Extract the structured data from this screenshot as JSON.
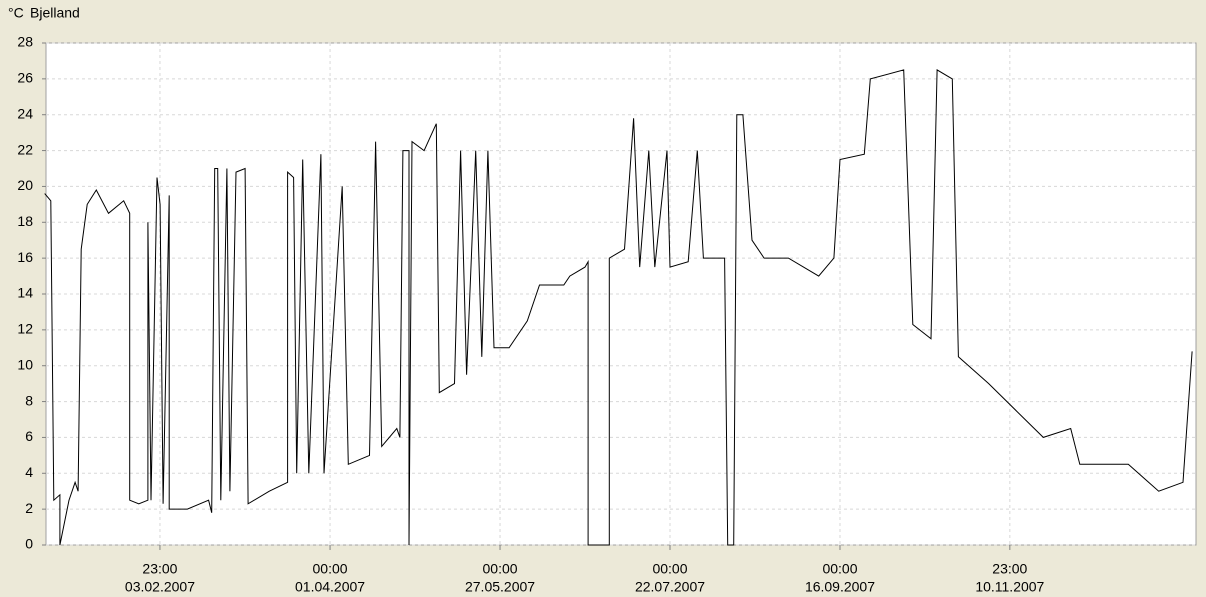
{
  "chart_data": {
    "type": "line",
    "title": "Bjelland",
    "y_label": "°C",
    "color": "#000000",
    "grid": true,
    "x": [
      "2006-12-28",
      "2006-12-30",
      "2006-12-31",
      "2007-01-02",
      "2007-01-02",
      "2007-01-05",
      "2007-01-07",
      "2007-01-08",
      "2007-01-09",
      "2007-01-11",
      "2007-01-14",
      "2007-01-18",
      "2007-01-23",
      "2007-01-25",
      "2007-01-25",
      "2007-01-28",
      "2007-01-31",
      "2007-01-31",
      "2007-02-01",
      "2007-02-03",
      "2007-02-04",
      "2007-02-05",
      "2007-02-07",
      "2007-02-07",
      "2007-02-13",
      "2007-02-20",
      "2007-02-21",
      "2007-02-22",
      "2007-02-23",
      "2007-02-24",
      "2007-02-26",
      "2007-02-27",
      "2007-03-01",
      "2007-03-04",
      "2007-03-05",
      "2007-03-12",
      "2007-03-18",
      "2007-03-18",
      "2007-03-20",
      "2007-03-21",
      "2007-03-23",
      "2007-03-25",
      "2007-03-29",
      "2007-03-30",
      "2007-04-05",
      "2007-04-07",
      "2007-04-14",
      "2007-04-16",
      "2007-04-18",
      "2007-04-23",
      "2007-04-24",
      "2007-04-25",
      "2007-04-27",
      "2007-04-27",
      "2007-04-28",
      "2007-05-02",
      "2007-05-06",
      "2007-05-07",
      "2007-05-12",
      "2007-05-14",
      "2007-05-16",
      "2007-05-19",
      "2007-05-21",
      "2007-05-23",
      "2007-05-25",
      "2007-05-30",
      "2007-06-05",
      "2007-06-09",
      "2007-06-17",
      "2007-06-19",
      "2007-06-24",
      "2007-06-25",
      "2007-06-25",
      "2007-07-02",
      "2007-07-02",
      "2007-07-07",
      "2007-07-10",
      "2007-07-12",
      "2007-07-15",
      "2007-07-17",
      "2007-07-21",
      "2007-07-22",
      "2007-07-28",
      "2007-07-31",
      "2007-08-02",
      "2007-08-09",
      "2007-08-10",
      "2007-08-12",
      "2007-08-13",
      "2007-08-15",
      "2007-08-18",
      "2007-08-22",
      "2007-08-30",
      "2007-09-09",
      "2007-09-14",
      "2007-09-16",
      "2007-09-24",
      "2007-09-26",
      "2007-10-07",
      "2007-10-10",
      "2007-10-16",
      "2007-10-18",
      "2007-10-23",
      "2007-10-25",
      "2007-11-04",
      "2007-11-16",
      "2007-11-22",
      "2007-12-01",
      "2007-12-04",
      "2007-12-20",
      "2007-12-30",
      "2008-01-07",
      "2008-01-10"
    ],
    "values": [
      19.6,
      19.2,
      2.5,
      2.8,
      0,
      2.5,
      3.5,
      3,
      16.5,
      19,
      19.8,
      18.5,
      19.2,
      18.5,
      2.5,
      2.3,
      2.5,
      18,
      2.5,
      20.5,
      19,
      2.3,
      19.5,
      2,
      2,
      2.5,
      1.8,
      21,
      21,
      2.5,
      21,
      3,
      20.8,
      21,
      2.3,
      3,
      3.5,
      20.8,
      20.5,
      4,
      21.5,
      4,
      21.8,
      4,
      20,
      4.5,
      5,
      22.5,
      5.5,
      6.5,
      6,
      22,
      22,
      0,
      22.5,
      22,
      23.5,
      8.5,
      9,
      22,
      9.5,
      22,
      10.5,
      22,
      11,
      11,
      12.5,
      14.5,
      14.5,
      15,
      15.5,
      15.8,
      0,
      0,
      16,
      16.5,
      23.8,
      15.5,
      22,
      15.5,
      22,
      15.5,
      15.8,
      22,
      16,
      16,
      0,
      0,
      24,
      24,
      17,
      16,
      16,
      15,
      16,
      21.5,
      21.8,
      26,
      26.5,
      12.3,
      11.5,
      26.5,
      26,
      10.5,
      9,
      7,
      6,
      6.5,
      4.5,
      4.5,
      3,
      3.5,
      10.8
    ],
    "xlim": [
      "2006-12-28T10:00",
      "2008-01-11T07:00"
    ],
    "xticks": [
      {
        "value": "2007-02-03T23:00",
        "label": [
          "23:00",
          "03.02.2007"
        ]
      },
      {
        "value": "2007-04-01T00:00",
        "label": [
          "00:00",
          "01.04.2007"
        ]
      },
      {
        "value": "2007-05-27T00:00",
        "label": [
          "00:00",
          "27.05.2007"
        ]
      },
      {
        "value": "2007-07-22T00:00",
        "label": [
          "00:00",
          "22.07.2007"
        ]
      },
      {
        "value": "2007-09-16T00:00",
        "label": [
          "00:00",
          "16.09.2007"
        ]
      },
      {
        "value": "2007-11-10T23:00",
        "label": [
          "23:00",
          "10.11.2007"
        ]
      }
    ],
    "ylim": [
      0,
      28
    ],
    "yticks": [
      0,
      2,
      4,
      6,
      8,
      10,
      12,
      14,
      16,
      18,
      20,
      22,
      24,
      26,
      28
    ]
  }
}
